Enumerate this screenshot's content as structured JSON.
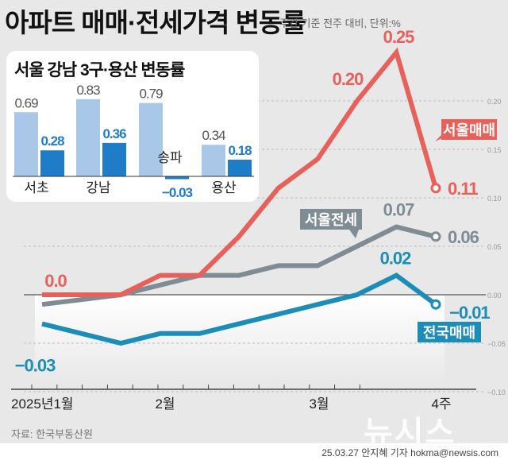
{
  "title": "아파트 매매·전세가격 변동률",
  "subtitle": "주간 기준 전주 대비, 단위:%",
  "source": "자료: 한국부동산원",
  "credit": "25.03.27 안지혜 기자 hokma@newsis.com",
  "logo": "뉴시스",
  "colors": {
    "seoul_sale": "#e8605a",
    "seoul_jeonse": "#7f8c94",
    "national_sale": "#1c8db6",
    "inset_light": "#a9c8e8",
    "inset_dark": "#1f7cc6",
    "background": "#e8e8e8"
  },
  "chart_data": [
    {
      "type": "line",
      "title": "아파트 매매·전세가격 변동률",
      "x_tick_labels": [
        "2025년1월",
        "2월",
        "3월",
        "4주"
      ],
      "ylim": [
        -0.1,
        0.25
      ],
      "y_ticks": [
        "0.20",
        "0.15",
        "0.10",
        "0.05",
        "0.00",
        "-0.05",
        "-0.10"
      ],
      "y_tick_values": [
        0.2,
        0.15,
        0.1,
        0.05,
        0.0,
        -0.05,
        -0.1
      ],
      "grid": true,
      "series": [
        {
          "name": "서울매매",
          "values": [
            0.0,
            0.0,
            0.0,
            0.02,
            0.02,
            0.06,
            0.11,
            0.14,
            0.2,
            0.25,
            0.11
          ],
          "labels": [
            {
              "index": 0,
              "text": "0.0"
            },
            {
              "index": 8,
              "text": "0.20"
            },
            {
              "index": 9,
              "text": "0.25"
            },
            {
              "index": 10,
              "text": "0.11"
            }
          ]
        },
        {
          "name": "서울전세",
          "values": [
            -0.01,
            -0.005,
            0.0,
            0.01,
            0.02,
            0.02,
            0.03,
            0.03,
            0.05,
            0.07,
            0.06
          ],
          "labels": [
            {
              "index": 9,
              "text": "0.07"
            },
            {
              "index": 10,
              "text": "0.06"
            }
          ]
        },
        {
          "name": "전국매매",
          "values": [
            -0.03,
            -0.04,
            -0.05,
            -0.04,
            -0.04,
            -0.03,
            -0.02,
            -0.01,
            0.0,
            0.02,
            -0.01
          ],
          "labels": [
            {
              "index": 0,
              "text": "-0.03"
            },
            {
              "index": 9,
              "text": "0.02"
            },
            {
              "index": 10,
              "text": "-0.01"
            }
          ]
        }
      ]
    },
    {
      "type": "bar",
      "title": "서울 강남 3구·용산 변동률",
      "categories": [
        "서초",
        "강남",
        "송파",
        "용산"
      ],
      "series": [
        {
          "values": [
            0.69,
            0.83,
            0.79,
            0.34
          ],
          "labels": [
            "0.69",
            "0.83",
            "0.79",
            "0.34"
          ]
        },
        {
          "values": [
            0.28,
            0.36,
            -0.03,
            0.18
          ],
          "labels": [
            "0.28",
            "0.36",
            "-0.03",
            "0.18"
          ]
        }
      ]
    }
  ]
}
